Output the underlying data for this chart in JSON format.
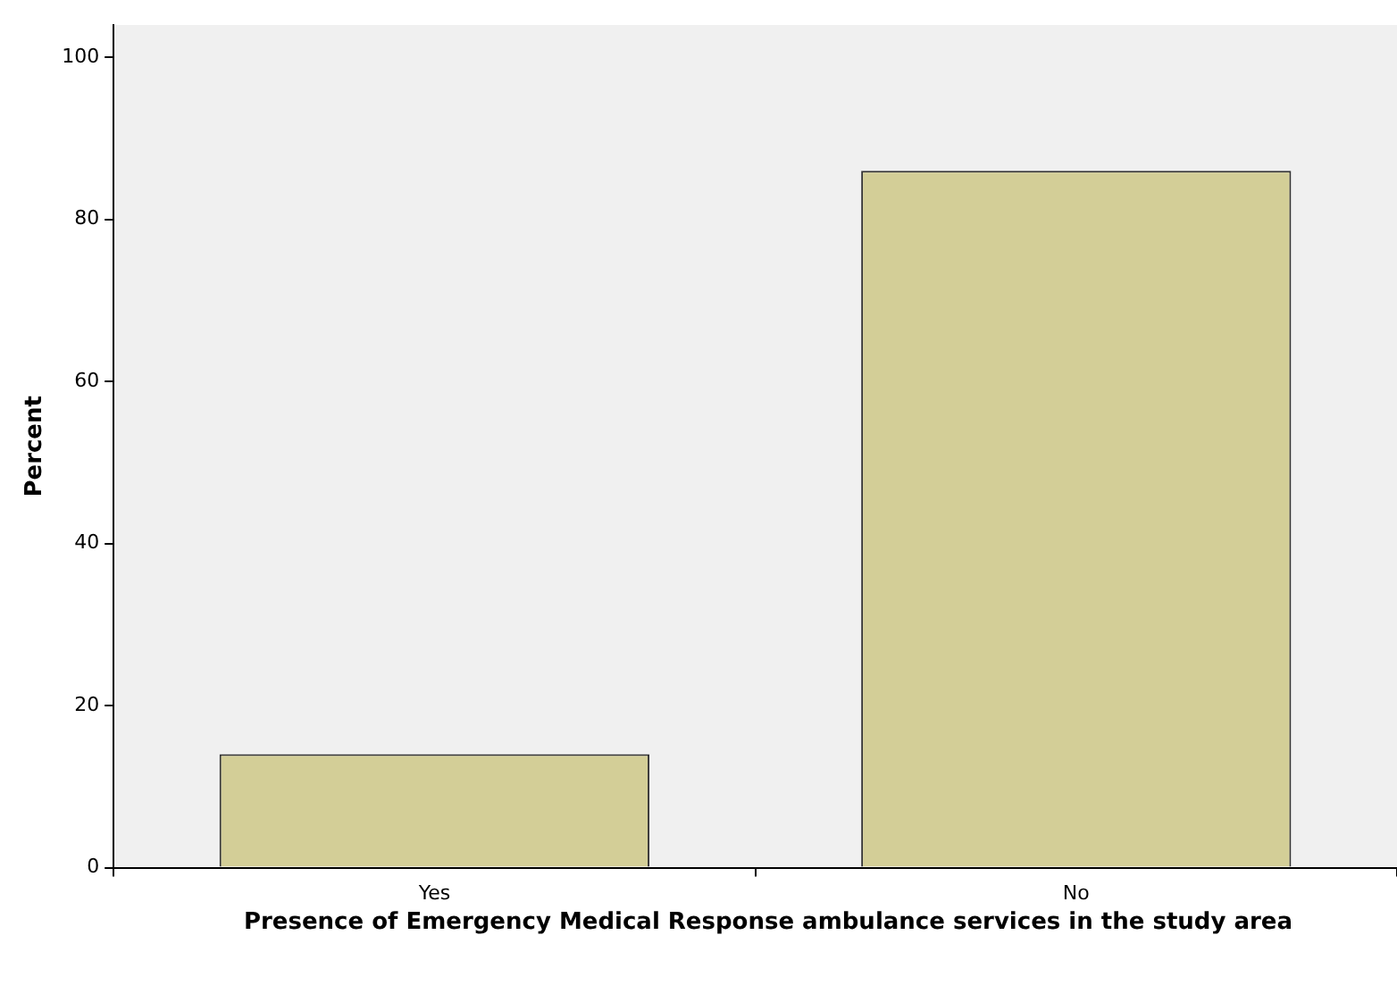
{
  "chart_data": {
    "type": "bar",
    "ylabel": "Percent",
    "xlabel": "Presence of Emergency Medical Response ambulance services in the study area",
    "categories": [
      "Yes",
      "No"
    ],
    "values": [
      14,
      86
    ],
    "color": "#d3ce97",
    "ylim": [
      0,
      104
    ],
    "yticks": [
      0,
      20,
      40,
      60,
      80,
      100
    ],
    "grid": false,
    "legend": false
  }
}
